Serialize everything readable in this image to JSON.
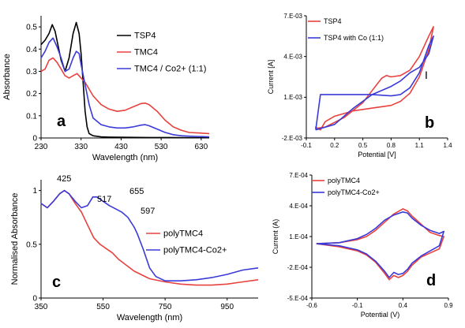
{
  "chart_data": [
    {
      "id": "a",
      "type": "line",
      "panel_label": "a",
      "xlabel": "Wavelength (nm)",
      "ylabel": "Absorbance",
      "xlim": [
        230,
        650
      ],
      "ylim": [
        0,
        0.55
      ],
      "xticks": [
        "230",
        "330",
        "430",
        "530",
        "630"
      ],
      "yticks": [
        "0",
        "0.1",
        "0.2",
        "0.3",
        "0.4",
        "0.5"
      ],
      "grid": false,
      "legend": "right",
      "series": [
        {
          "name": "TSP4",
          "color": "#000000",
          "x": [
            230,
            240,
            250,
            258,
            265,
            272,
            280,
            290,
            300,
            310,
            318,
            325,
            330,
            335,
            340,
            345,
            350,
            360,
            380,
            400,
            450,
            500,
            550,
            600,
            650
          ],
          "y": [
            0.42,
            0.44,
            0.47,
            0.51,
            0.48,
            0.42,
            0.35,
            0.3,
            0.36,
            0.47,
            0.52,
            0.47,
            0.38,
            0.25,
            0.12,
            0.05,
            0.02,
            0.01,
            0.005,
            0.004,
            0.003,
            0.002,
            0.002,
            0.001,
            0.001
          ]
        },
        {
          "name": "TMC4",
          "color": "#e8423f",
          "x": [
            230,
            240,
            250,
            260,
            270,
            280,
            290,
            300,
            310,
            320,
            330,
            340,
            350,
            360,
            380,
            400,
            420,
            440,
            460,
            480,
            490,
            500,
            520,
            540,
            560,
            580,
            600,
            650
          ],
          "y": [
            0.3,
            0.31,
            0.35,
            0.36,
            0.34,
            0.31,
            0.28,
            0.27,
            0.28,
            0.29,
            0.27,
            0.25,
            0.22,
            0.19,
            0.15,
            0.13,
            0.12,
            0.125,
            0.14,
            0.155,
            0.157,
            0.15,
            0.12,
            0.08,
            0.05,
            0.035,
            0.025,
            0.02
          ]
        },
        {
          "name": "TMC4 / Co2+ (1:1)",
          "color": "#3a3ad8",
          "x": [
            230,
            240,
            250,
            260,
            270,
            280,
            290,
            300,
            310,
            318,
            325,
            330,
            340,
            350,
            360,
            380,
            400,
            420,
            440,
            460,
            480,
            490,
            500,
            520,
            540,
            560,
            580,
            600,
            650
          ],
          "y": [
            0.36,
            0.39,
            0.43,
            0.45,
            0.41,
            0.36,
            0.3,
            0.31,
            0.36,
            0.39,
            0.38,
            0.33,
            0.24,
            0.15,
            0.09,
            0.06,
            0.05,
            0.045,
            0.045,
            0.05,
            0.058,
            0.06,
            0.055,
            0.04,
            0.025,
            0.015,
            0.01,
            0.008,
            0.005
          ]
        }
      ]
    },
    {
      "id": "b",
      "type": "line",
      "panel_label": "b",
      "xlabel": "Potential [V]",
      "ylabel": "Current [A]",
      "xlim": [
        -0.1,
        1.4
      ],
      "ylim": [
        -0.002,
        0.007
      ],
      "xticks": [
        "-0.1",
        "0.2",
        "0.5",
        "0.8",
        "1.1",
        "1.4"
      ],
      "yticks": [
        "-2.E-03",
        "1.E-03",
        "4.E-03",
        "7.E-03"
      ],
      "grid": false,
      "legend": "top-left",
      "annotations": [
        "I"
      ],
      "series": [
        {
          "name": "TSP4",
          "color": "#e8423f",
          "x": [
            0,
            0.1,
            0.3,
            0.5,
            0.6,
            0.7,
            0.75,
            0.8,
            0.9,
            1,
            1.1,
            1.2,
            1.25,
            1.2,
            1.1,
            1,
            0.9,
            0.8,
            0.6,
            0.4,
            0.2,
            0.1,
            0.05,
            0,
            0
          ],
          "y": [
            -0.0013,
            -0.0012,
            -0.0005,
            0.0006,
            0.0015,
            0.0024,
            0.0026,
            0.0025,
            0.0026,
            0.003,
            0.004,
            0.0055,
            0.0062,
            0.0045,
            0.0025,
            0.0013,
            0.0007,
            0.0004,
            0.0002,
            0,
            -0.0004,
            -0.0008,
            -0.0014,
            -0.0012,
            -0.0013
          ]
        },
        {
          "name": "TSP4 with Co (1:1)",
          "color": "#3a3ad8",
          "x": [
            0,
            0.2,
            0.4,
            0.6,
            0.8,
            0.9,
            1,
            1.1,
            1.2,
            1.25,
            1.2,
            1.1,
            1,
            0.9,
            0.8,
            0.6,
            0.4,
            0.2,
            0.1,
            0.05,
            0
          ],
          "y": [
            -0.0014,
            -0.001,
            0.0002,
            0.0012,
            0.0018,
            0.0022,
            0.0028,
            0.0032,
            0.0042,
            0.0055,
            0.0048,
            0.0028,
            0.0017,
            0.0012,
            0.0011,
            0.0012,
            0.0012,
            0.0012,
            0.0012,
            0.0012,
            -0.0014
          ]
        }
      ]
    },
    {
      "id": "c",
      "type": "line",
      "panel_label": "c",
      "xlabel": "Wavelength (nm)",
      "ylabel": "Normalised  Absorbance",
      "xlim": [
        350,
        1050
      ],
      "ylim": [
        0,
        1.1
      ],
      "xticks": [
        "350",
        "550",
        "750",
        "950"
      ],
      "yticks": [
        "0",
        "0.5",
        "1"
      ],
      "grid": false,
      "legend": "right",
      "annotations": [
        "425",
        "517",
        "655",
        "597"
      ],
      "series": [
        {
          "name": "polyTMC4",
          "color": "#e8423f",
          "x": [
            350,
            370,
            390,
            410,
            425,
            440,
            460,
            480,
            500,
            520,
            540,
            560,
            580,
            600,
            650,
            700,
            750,
            800,
            850,
            900,
            950,
            1000,
            1050
          ],
          "y": [
            0.88,
            0.84,
            0.9,
            0.97,
            1,
            0.97,
            0.88,
            0.8,
            0.68,
            0.56,
            0.5,
            0.46,
            0.42,
            0.36,
            0.25,
            0.18,
            0.15,
            0.13,
            0.12,
            0.12,
            0.13,
            0.15,
            0.17
          ]
        },
        {
          "name": "polyTMC4-Co2+",
          "color": "#3a3ad8",
          "x": [
            350,
            370,
            390,
            410,
            425,
            440,
            460,
            480,
            500,
            517,
            530,
            550,
            570,
            590,
            610,
            630,
            650,
            660,
            680,
            700,
            720,
            750,
            800,
            850,
            900,
            950,
            1000,
            1050
          ],
          "y": [
            0.88,
            0.84,
            0.9,
            0.97,
            1,
            0.97,
            0.9,
            0.84,
            0.86,
            0.94,
            0.94,
            0.9,
            0.86,
            0.83,
            0.8,
            0.75,
            0.66,
            0.6,
            0.45,
            0.28,
            0.2,
            0.16,
            0.16,
            0.17,
            0.19,
            0.22,
            0.26,
            0.28
          ]
        }
      ]
    },
    {
      "id": "d",
      "type": "line",
      "panel_label": "d",
      "xlabel": "Potential (V)",
      "ylabel": "Current (A)",
      "xlim": [
        -0.6,
        0.9
      ],
      "ylim": [
        -0.0005,
        0.0007
      ],
      "xticks": [
        "-0.6",
        "-0.1",
        "0.4",
        "0.9"
      ],
      "yticks": [
        "-5.E-04",
        "-2.E-04",
        "1.E-04",
        "4.E-04",
        "7.E-04"
      ],
      "grid": false,
      "legend": "top-left",
      "series": [
        {
          "name": "polyTMC4",
          "color": "#e8423f",
          "x": [
            -0.55,
            -0.3,
            -0.1,
            0,
            0.1,
            0.2,
            0.3,
            0.4,
            0.45,
            0.5,
            0.6,
            0.7,
            0.8,
            0.85,
            0.8,
            0.7,
            0.6,
            0.5,
            0.45,
            0.4,
            0.35,
            0.3,
            0.25,
            0.2,
            0.1,
            0,
            -0.1,
            -0.3,
            -0.55
          ],
          "y": [
            3e-05,
            4e-05,
            7e-05,
            0.0001,
            0.00016,
            0.00024,
            0.00032,
            0.00037,
            0.00035,
            0.0003,
            0.00022,
            0.00014,
            0.00011,
            0.0001,
            -2e-05,
            -6e-05,
            -0.0001,
            -0.00018,
            -0.00024,
            -0.00028,
            -0.0003,
            -0.00028,
            -0.00032,
            -0.00026,
            -0.00015,
            -8e-05,
            -4e-05,
            0,
            3e-05
          ]
        },
        {
          "name": "polyTMC4-Co2+",
          "color": "#3a3ad8",
          "x": [
            -0.55,
            -0.3,
            -0.1,
            0,
            0.1,
            0.2,
            0.3,
            0.4,
            0.45,
            0.5,
            0.6,
            0.7,
            0.8,
            0.85,
            0.8,
            0.7,
            0.6,
            0.5,
            0.45,
            0.4,
            0.35,
            0.3,
            0.25,
            0.2,
            0.1,
            0,
            -0.1,
            -0.3,
            -0.55
          ],
          "y": [
            3e-05,
            4e-05,
            8e-05,
            0.00012,
            0.00018,
            0.00026,
            0.00031,
            0.00034,
            0.00033,
            0.00028,
            0.00021,
            0.00016,
            0.00013,
            0.00015,
            1e-05,
            -4e-05,
            -9e-05,
            -0.00016,
            -0.00022,
            -0.00026,
            -0.00027,
            -0.00025,
            -0.0003,
            -0.00024,
            -0.00014,
            -7e-05,
            -3e-05,
            1e-05,
            3e-05
          ]
        }
      ]
    }
  ]
}
